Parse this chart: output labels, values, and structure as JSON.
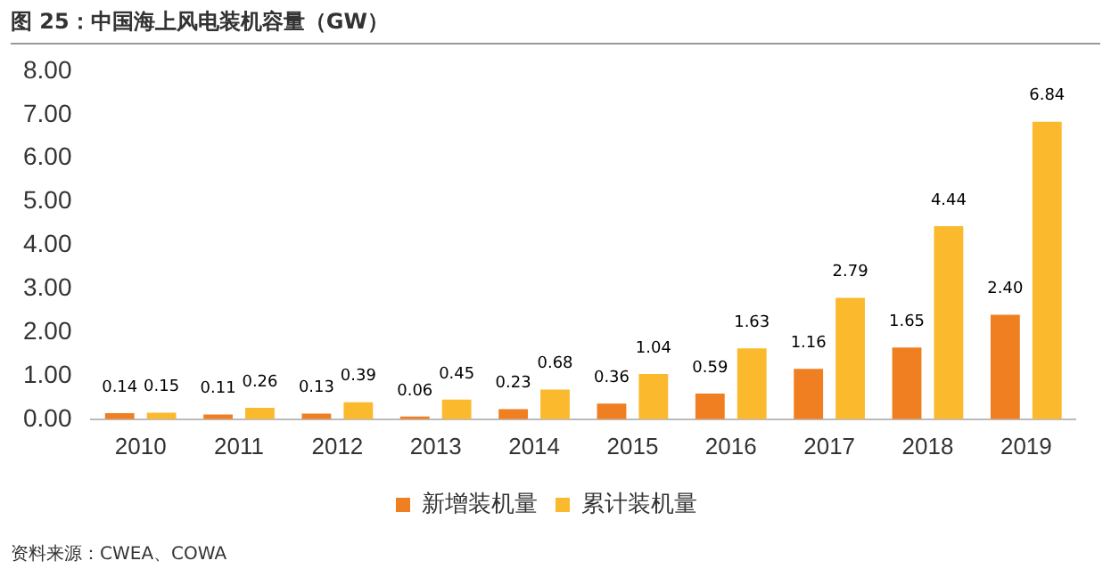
{
  "chart_data": {
    "type": "bar",
    "title": "图 25：中国海上风电装机容量（GW）",
    "categories": [
      "2010",
      "2011",
      "2012",
      "2013",
      "2014",
      "2015",
      "2016",
      "2017",
      "2018",
      "2019"
    ],
    "series": [
      {
        "name": "新增装机量",
        "color": "#f07f21",
        "values": [
          0.14,
          0.11,
          0.13,
          0.06,
          0.23,
          0.36,
          0.59,
          1.16,
          1.65,
          2.4
        ],
        "value_labels": [
          "0.14",
          "0.11",
          "0.13",
          "0.06",
          "0.23",
          "0.36",
          "0.59",
          "1.16",
          "1.65",
          "2.40"
        ]
      },
      {
        "name": "累计装机量",
        "color": "#fbb92e",
        "values": [
          0.15,
          0.26,
          0.39,
          0.45,
          0.68,
          1.04,
          1.63,
          2.79,
          4.44,
          6.84
        ],
        "value_labels": [
          "0.15",
          "0.26",
          "0.39",
          "0.45",
          "0.68",
          "1.04",
          "1.63",
          "2.79",
          "4.44",
          "6.84"
        ]
      }
    ],
    "ylim": [
      0,
      8
    ],
    "yticks": [
      {
        "value": 0,
        "label": "0.00"
      },
      {
        "value": 1,
        "label": "1.00"
      },
      {
        "value": 2,
        "label": "2.00"
      },
      {
        "value": 3,
        "label": "3.00"
      },
      {
        "value": 4,
        "label": "4.00"
      },
      {
        "value": 5,
        "label": "5.00"
      },
      {
        "value": 6,
        "label": "6.00"
      },
      {
        "value": 7,
        "label": "7.00"
      },
      {
        "value": 8,
        "label": "8.00"
      }
    ],
    "grid": false,
    "legend": "bottom",
    "annotations": [
      "资料来源：CWEA、COWA"
    ]
  }
}
